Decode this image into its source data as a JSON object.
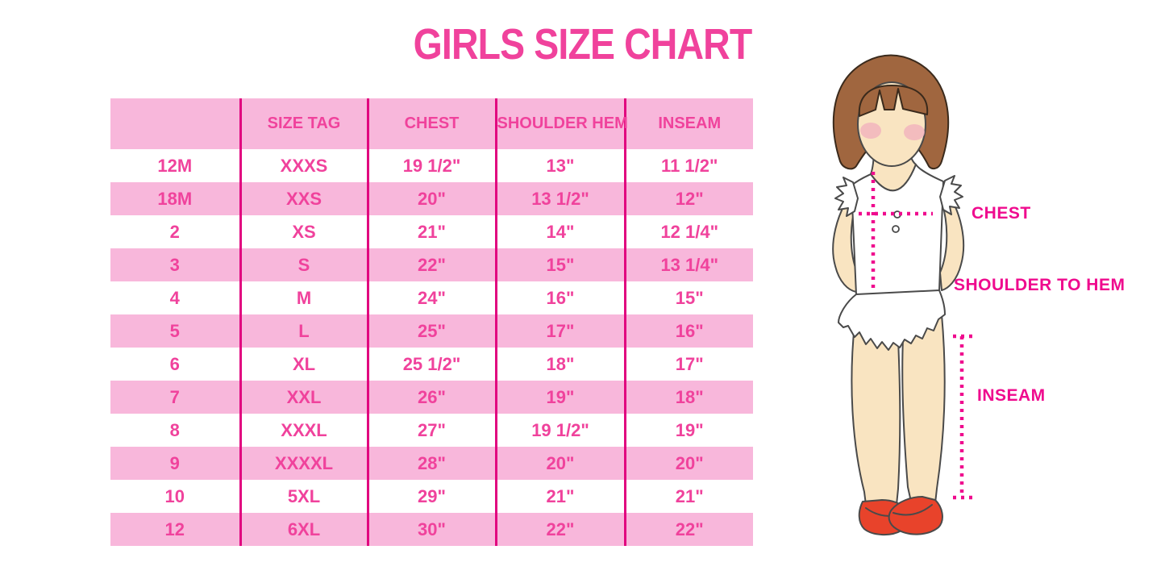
{
  "title": "GIRLS SIZE CHART",
  "colors": {
    "accent-pink": "#F0429C",
    "band-pink": "#F8B7DB",
    "divider-magenta": "#E1067F",
    "label-magenta": "#EF0B8E",
    "hair-brown": "#A0663F",
    "skin": "#F9E4C1",
    "blush": "#F2AFBD",
    "shoe-red": "#E8432B",
    "outline": "#4A4A4A"
  },
  "table": {
    "columns": [
      "",
      "SIZE TAG",
      "CHEST",
      "SHOULDER HEM",
      "INSEAM"
    ],
    "rows": [
      [
        "12M",
        "XXXS",
        "19 1/2\"",
        "13\"",
        "11 1/2\""
      ],
      [
        "18M",
        "XXS",
        "20\"",
        "13 1/2\"",
        "12\""
      ],
      [
        "2",
        "XS",
        "21\"",
        "14\"",
        "12 1/4\""
      ],
      [
        "3",
        "S",
        "22\"",
        "15\"",
        "13 1/4\""
      ],
      [
        "4",
        "M",
        "24\"",
        "16\"",
        "15\""
      ],
      [
        "5",
        "L",
        "25\"",
        "17\"",
        "16\""
      ],
      [
        "6",
        "XL",
        "25 1/2\"",
        "18\"",
        "17\""
      ],
      [
        "7",
        "XXL",
        "26\"",
        "19\"",
        "18\""
      ],
      [
        "8",
        "XXXL",
        "27\"",
        "19 1/2\"",
        "19\""
      ],
      [
        "9",
        "XXXXL",
        "28\"",
        "20\"",
        "20\""
      ],
      [
        "10",
        "5XL",
        "29\"",
        "21\"",
        "21\""
      ],
      [
        "12",
        "6XL",
        "30\"",
        "22\"",
        "22\""
      ]
    ]
  },
  "figure": {
    "labels": {
      "chest": "CHEST",
      "shoulder_to_hem": "SHOULDER TO HEM",
      "inseam": "INSEAM"
    }
  },
  "chart_data": {
    "type": "table",
    "title": "GIRLS SIZE CHART",
    "columns": [
      "",
      "SIZE TAG",
      "CHEST",
      "SHOULDER HEM",
      "INSEAM"
    ],
    "rows": [
      [
        "12M",
        "XXXS",
        "19 1/2\"",
        "13\"",
        "11 1/2\""
      ],
      [
        "18M",
        "XXS",
        "20\"",
        "13 1/2\"",
        "12\""
      ],
      [
        "2",
        "XS",
        "21\"",
        "14\"",
        "12 1/4\""
      ],
      [
        "3",
        "S",
        "22\"",
        "15\"",
        "13 1/4\""
      ],
      [
        "4",
        "M",
        "24\"",
        "16\"",
        "15\""
      ],
      [
        "5",
        "L",
        "25\"",
        "17\"",
        "16\""
      ],
      [
        "6",
        "XL",
        "25 1/2\"",
        "18\"",
        "17\""
      ],
      [
        "7",
        "XXL",
        "26\"",
        "19\"",
        "18\""
      ],
      [
        "8",
        "XXXL",
        "27\"",
        "19 1/2\"",
        "19\""
      ],
      [
        "9",
        "XXXXL",
        "28\"",
        "20\"",
        "20\""
      ],
      [
        "10",
        "5XL",
        "29\"",
        "21\"",
        "21\""
      ],
      [
        "12",
        "6XL",
        "30\"",
        "22\"",
        "22\""
      ]
    ],
    "annotations": [
      "CHEST",
      "SHOULDER TO HEM",
      "INSEAM"
    ]
  }
}
